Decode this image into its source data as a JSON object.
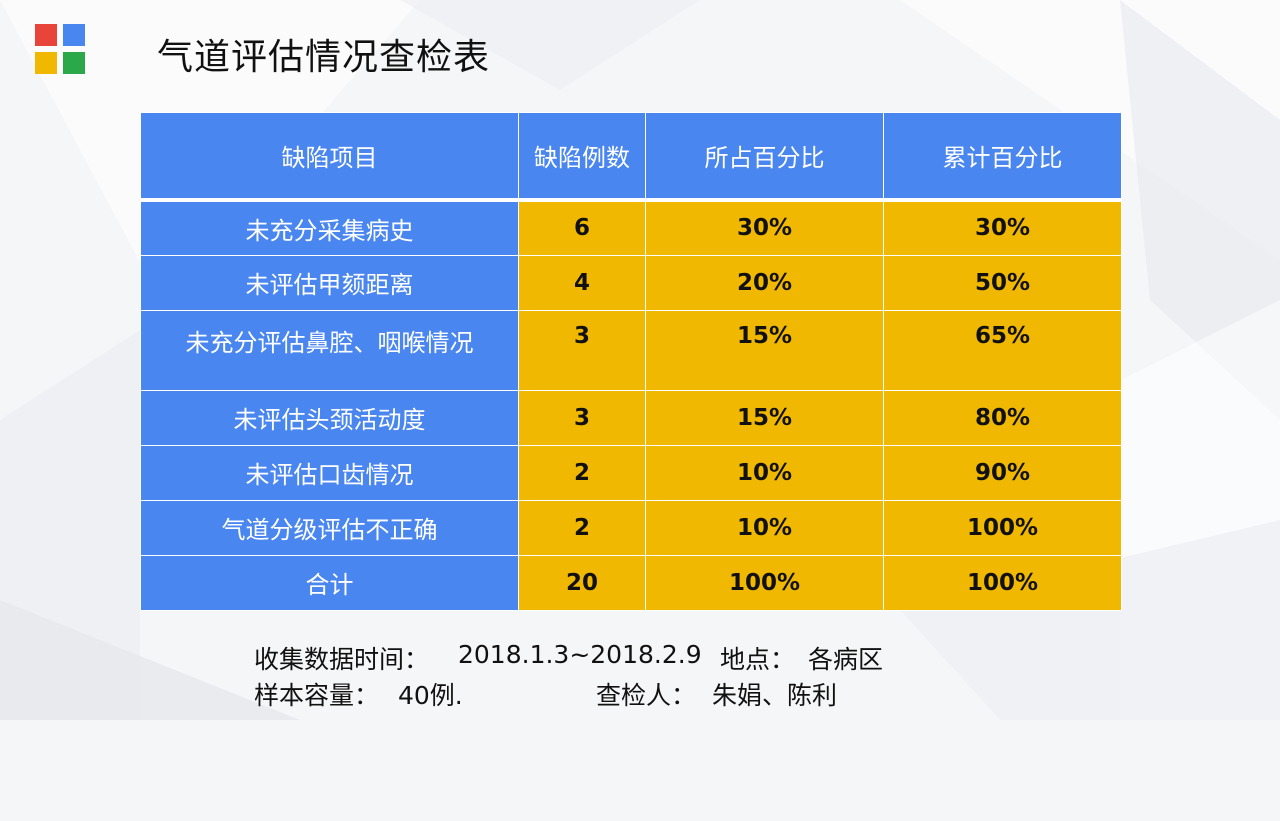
{
  "slide": {
    "title": "气道评估情况查检表",
    "logo_colors": [
      "#e8443a",
      "#4a86ef",
      "#f0b800",
      "#2aa84a"
    ]
  },
  "table": {
    "headers": [
      "缺陷项目",
      "缺陷例数",
      "所占百分比",
      "累计百分比"
    ],
    "rows": [
      {
        "item": "未充分采集病史",
        "count": "6",
        "percent": "30%",
        "cumulative": "30%"
      },
      {
        "item": "未评估甲颏距离",
        "count": "4",
        "percent": "20%",
        "cumulative": "50%"
      },
      {
        "item": "未充分评估鼻腔、咽喉情况",
        "count": "3",
        "percent": "15%",
        "cumulative": "65%"
      },
      {
        "item": "未评估头颈活动度",
        "count": "3",
        "percent": "15%",
        "cumulative": "80%"
      },
      {
        "item": "未评估口齿情况",
        "count": "2",
        "percent": "10%",
        "cumulative": "90%"
      },
      {
        "item": "气道分级评估不正确",
        "count": "2",
        "percent": "10%",
        "cumulative": "100%"
      },
      {
        "item": "合计",
        "count": "20",
        "percent": "100%",
        "cumulative": "100%"
      }
    ],
    "colors": {
      "header_bg": "#4a86ef",
      "value_bg": "#f0b800"
    }
  },
  "footer": {
    "time_label": "收集数据时间：",
    "time_value": "2018.1.3~2018.2.9",
    "place_label": "地点：",
    "place_value": "各病区",
    "sample_label": "样本容量：",
    "sample_value": "40例.",
    "inspector_label": "查检人：",
    "inspector_value": "朱娟、陈利"
  }
}
